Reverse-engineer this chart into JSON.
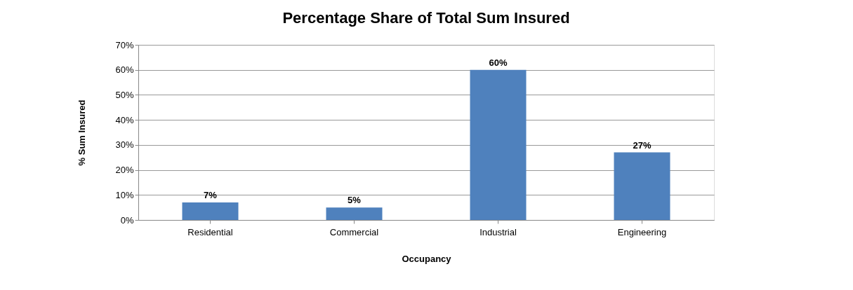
{
  "chart_data": {
    "type": "bar",
    "title": "Percentage Share of Total Sum Insured",
    "xlabel": "Occupancy",
    "ylabel": "% Sum Insured",
    "categories": [
      "Residential",
      "Commercial",
      "Industrial",
      "Engineering"
    ],
    "values": [
      7,
      5,
      60,
      27
    ],
    "color": "#4f81bd",
    "value_labels": [
      "7%",
      "5%",
      "60%",
      "27%"
    ],
    "ylim": [
      0,
      70
    ],
    "yticks": [
      {
        "value": 0,
        "label": "0%"
      },
      {
        "value": 10,
        "label": "10%"
      },
      {
        "value": 20,
        "label": "20%"
      },
      {
        "value": 30,
        "label": "30%"
      },
      {
        "value": 40,
        "label": "40%"
      },
      {
        "value": 50,
        "label": "50%"
      },
      {
        "value": 60,
        "label": "60%"
      },
      {
        "value": 70,
        "label": "70%"
      }
    ],
    "grid": "y"
  }
}
